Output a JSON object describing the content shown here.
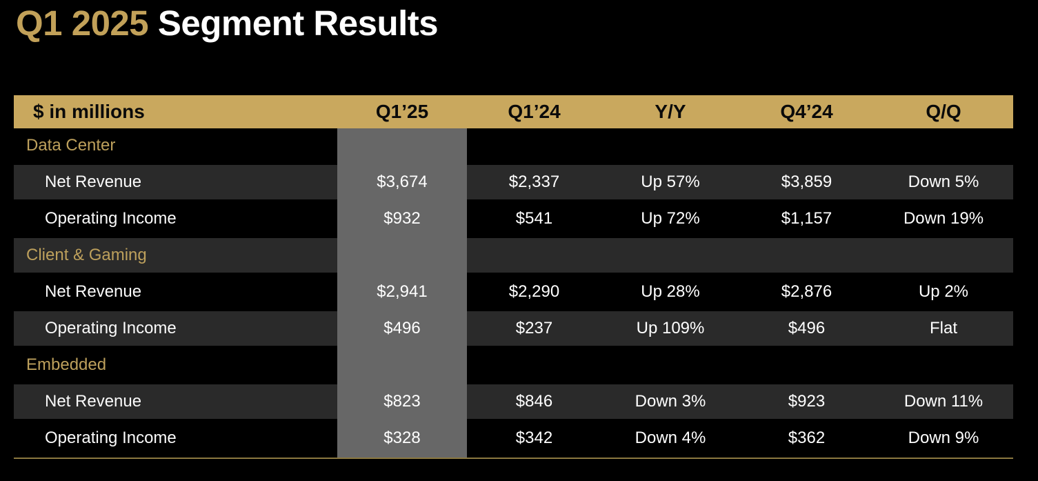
{
  "title": {
    "highlight": "Q1 2025",
    "rest": " Segment Results"
  },
  "table": {
    "columns": [
      "$ in millions",
      "Q1’25",
      "Q1’24",
      "Y/Y",
      "Q4’24",
      "Q/Q"
    ],
    "highlighted_column": "Q1’25",
    "sections": [
      {
        "name": "Data Center",
        "rows": [
          {
            "label": "Net Revenue",
            "q1_25": "$3,674",
            "q1_24": "$2,337",
            "yy": "Up 57%",
            "q4_24": "$3,859",
            "qq": "Down 5%"
          },
          {
            "label": "Operating Income",
            "q1_25": "$932",
            "q1_24": "$541",
            "yy": "Up 72%",
            "q4_24": "$1,157",
            "qq": "Down 19%"
          }
        ]
      },
      {
        "name": "Client & Gaming",
        "rows": [
          {
            "label": "Net Revenue",
            "q1_25": "$2,941",
            "q1_24": "$2,290",
            "yy": "Up 28%",
            "q4_24": "$2,876",
            "qq": "Up 2%"
          },
          {
            "label": "Operating Income",
            "q1_25": "$496",
            "q1_24": "$237",
            "yy": "Up 109%",
            "q4_24": "$496",
            "qq": "Flat"
          }
        ]
      },
      {
        "name": "Embedded",
        "rows": [
          {
            "label": "Net Revenue",
            "q1_25": "$823",
            "q1_24": "$846",
            "yy": "Down 3%",
            "q4_24": "$923",
            "qq": "Down 11%"
          },
          {
            "label": "Operating Income",
            "q1_25": "$328",
            "q1_24": "$342",
            "yy": "Down 4%",
            "q4_24": "$362",
            "qq": "Down 9%"
          }
        ]
      }
    ]
  },
  "colors": {
    "background": "#000000",
    "title_accent_gold": "#C2A159",
    "header_gold": "#C9A85E",
    "section_label_gold": "#BDA05C",
    "row_stripe": "#2A2A2A",
    "highlight_band_gray": "#676767",
    "bottom_rule_gold": "#8C7940",
    "text_white": "#FFFFFF"
  }
}
